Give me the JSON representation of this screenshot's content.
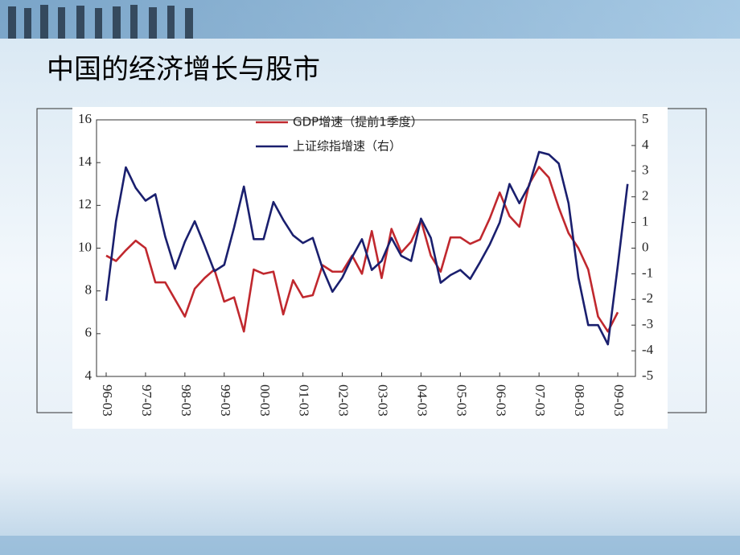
{
  "chart_data": {
    "type": "line",
    "title": "中国的经济增长与股市",
    "categories": [
      "96-03",
      null,
      null,
      null,
      "97-03",
      null,
      null,
      null,
      "98-03",
      null,
      null,
      null,
      "99-03",
      null,
      null,
      null,
      "00-03",
      null,
      null,
      null,
      "01-03",
      null,
      null,
      null,
      "02-03",
      null,
      null,
      null,
      "03-03",
      null,
      null,
      null,
      "04-03",
      null,
      null,
      null,
      "05-03",
      null,
      null,
      null,
      "06-03",
      null,
      null,
      null,
      "07-03",
      null,
      null,
      null,
      "08-03",
      null,
      null,
      null,
      "09-03",
      null
    ],
    "series": [
      {
        "name": "GDP增速（提前1季度）",
        "color": "#c0282e",
        "values": [
          9.65,
          9.4,
          9.9,
          10.35,
          10.0,
          8.4,
          8.4,
          7.6,
          6.8,
          8.1,
          8.6,
          9.0,
          7.5,
          7.7,
          6.1,
          9.0,
          8.8,
          8.9,
          6.9,
          8.5,
          7.7,
          7.8,
          9.2,
          8.9,
          8.9,
          9.65,
          8.8,
          10.8,
          8.6,
          10.9,
          9.8,
          10.3,
          11.3,
          9.65,
          8.9,
          10.5,
          10.5,
          10.2,
          10.4,
          11.4,
          12.6,
          11.5,
          11.0,
          13.0,
          13.8,
          13.3,
          11.9,
          10.7,
          10.0,
          9.0,
          6.8,
          6.1,
          7.0,
          null
        ]
      },
      {
        "name": "上证综指增速（右）",
        "color": "#1a1f6e",
        "axis": "y2",
        "values": [
          -2.05,
          1.05,
          3.15,
          2.35,
          1.85,
          2.1,
          0.45,
          -0.8,
          0.25,
          1.05,
          0.1,
          -0.9,
          -0.65,
          0.8,
          2.4,
          0.35,
          0.35,
          1.8,
          1.1,
          0.5,
          0.2,
          0.4,
          -0.8,
          -1.7,
          -1.15,
          -0.35,
          0.35,
          -0.85,
          -0.5,
          0.4,
          -0.3,
          -0.5,
          1.15,
          0.4,
          -1.35,
          -1.05,
          -0.85,
          -1.2,
          -0.55,
          0.15,
          1.0,
          2.5,
          1.75,
          2.45,
          3.75,
          3.65,
          3.3,
          1.75,
          -1.15,
          -3.0,
          -3.0,
          -3.75,
          -0.7,
          2.5
        ]
      }
    ],
    "ylim": [
      4,
      16
    ],
    "yticks": [
      4,
      6,
      8,
      10,
      12,
      14,
      16
    ],
    "y2lim": [
      -5,
      5
    ],
    "y2ticks": [
      -5,
      -4,
      -3,
      -2,
      -1,
      0,
      1,
      2,
      3,
      4,
      5
    ]
  }
}
